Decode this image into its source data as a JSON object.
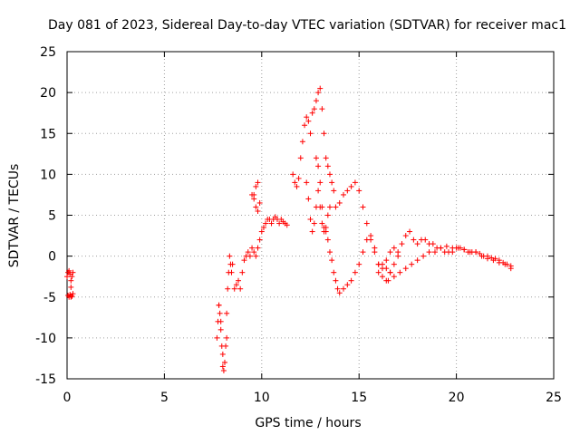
{
  "chart_data": {
    "type": "scatter",
    "title": "Day 081 of 2023, Sidereal Day-to-day VTEC variation (SDTVAR) for receiver mac1",
    "xlabel": "GPS time / hours",
    "ylabel": "SDTVAR / TECUs",
    "xlim": [
      0,
      25
    ],
    "ylim": [
      -15,
      25
    ],
    "xticks": [
      "0",
      "5",
      "10",
      "15",
      "20",
      "25"
    ],
    "yticks": [
      "-15",
      "-10",
      "-5",
      "0",
      "5",
      "10",
      "15",
      "20",
      "25"
    ],
    "grid": true,
    "series": [
      {
        "name": "SDTVAR",
        "color": "#ff0000",
        "marker": "plus",
        "x": [
          0.0,
          0.05,
          0.1,
          0.15,
          0.2,
          0.25,
          0.3,
          0.05,
          0.1,
          0.15,
          0.2,
          0.25,
          0.3,
          0.2,
          7.7,
          7.75,
          7.8,
          7.85,
          7.9,
          7.95,
          8.0,
          8.05,
          8.1,
          8.15,
          8.2,
          8.25,
          8.3,
          8.35,
          8.4,
          8.45,
          8.5,
          8.6,
          8.7,
          8.8,
          8.9,
          9.0,
          9.1,
          9.2,
          9.3,
          9.4,
          9.5,
          9.6,
          9.7,
          9.8,
          9.9,
          10.0,
          10.1,
          10.2,
          10.3,
          10.4,
          10.5,
          10.6,
          10.7,
          10.8,
          10.9,
          11.0,
          11.1,
          11.2,
          11.3,
          7.8,
          7.9,
          8.0,
          8.1,
          8.2,
          9.5,
          9.6,
          9.7,
          9.8,
          9.9,
          9.6,
          9.7,
          9.8,
          11.6,
          11.7,
          11.8,
          11.9,
          12.0,
          12.1,
          12.2,
          12.3,
          12.4,
          12.5,
          12.6,
          12.7,
          12.8,
          12.9,
          13.0,
          13.1,
          13.2,
          13.3,
          13.4,
          13.5,
          13.6,
          13.7,
          12.3,
          12.4,
          12.5,
          12.6,
          12.7,
          12.8,
          12.9,
          13.0,
          13.1,
          13.2,
          13.3,
          13.4,
          13.5,
          12.8,
          12.9,
          13.0,
          13.1,
          13.2,
          13.3,
          13.4,
          13.5,
          13.6,
          13.7,
          13.8,
          13.9,
          14.0,
          14.2,
          14.4,
          14.6,
          14.8,
          15.0,
          15.2,
          15.4,
          15.6,
          15.8,
          16.0,
          16.2,
          16.4,
          16.6,
          13.8,
          14.0,
          14.2,
          14.4,
          14.6,
          14.8,
          15.0,
          15.2,
          15.4,
          15.6,
          15.8,
          16.0,
          16.2,
          16.4,
          16.6,
          16.8,
          17.0,
          16.0,
          16.2,
          16.4,
          16.6,
          16.8,
          17.0,
          17.2,
          17.4,
          17.6,
          17.8,
          18.0,
          18.2,
          18.4,
          18.6,
          18.8,
          19.0,
          19.2,
          19.4,
          19.6,
          19.8,
          20.0,
          20.2,
          20.4,
          20.6,
          20.8,
          21.0,
          21.2,
          21.4,
          21.6,
          21.8,
          22.0,
          22.2,
          22.4,
          22.6,
          22.8,
          16.5,
          16.8,
          17.1,
          17.4,
          17.7,
          18.0,
          18.3,
          18.6,
          18.9,
          19.2,
          19.5,
          19.8,
          20.1,
          20.4,
          20.7,
          21.0,
          21.3,
          21.6,
          21.9,
          22.2,
          22.5,
          22.8
        ],
        "y": [
          -2.5,
          -2.0,
          -1.8,
          -2.2,
          -3.0,
          -2.5,
          -2.0,
          -4.8,
          -5.0,
          -4.7,
          -5.0,
          -4.9,
          -4.6,
          -3.8,
          -10.0,
          -8.0,
          -6.0,
          -7.0,
          -9.0,
          -11.0,
          -13.5,
          -14.0,
          -13.0,
          -11.0,
          -7.0,
          -4.0,
          -2.0,
          0.0,
          -1.0,
          -2.0,
          -1.0,
          -4.0,
          -3.5,
          -3.0,
          -4.0,
          -2.0,
          -0.5,
          0.0,
          0.5,
          0.0,
          1.0,
          0.5,
          0.0,
          1.0,
          2.0,
          3.0,
          3.5,
          4.0,
          4.5,
          4.5,
          4.0,
          4.5,
          4.8,
          4.5,
          4.0,
          4.5,
          4.2,
          4.0,
          3.8,
          -6.0,
          -8.0,
          -12.0,
          -13.0,
          -10.0,
          7.5,
          7.0,
          6.0,
          5.5,
          6.5,
          7.5,
          8.5,
          9.0,
          10.0,
          9.0,
          8.5,
          9.5,
          12.0,
          14.0,
          16.0,
          17.0,
          16.5,
          15.0,
          17.5,
          18.0,
          19.0,
          20.0,
          20.5,
          18.0,
          15.0,
          12.0,
          11.0,
          10.0,
          9.0,
          8.0,
          9.0,
          7.0,
          4.5,
          3.0,
          4.0,
          6.0,
          8.0,
          6.0,
          4.0,
          3.0,
          3.5,
          5.0,
          6.0,
          12.0,
          11.0,
          9.0,
          6.0,
          3.5,
          3.0,
          2.0,
          0.5,
          -0.5,
          -2.0,
          -3.0,
          -4.0,
          -4.5,
          -4.0,
          -3.5,
          -3.0,
          -2.0,
          -1.0,
          0.5,
          2.0,
          2.5,
          1.0,
          -1.0,
          -2.5,
          -3.0,
          -2.0,
          6.0,
          6.5,
          7.5,
          8.0,
          8.5,
          9.0,
          8.0,
          6.0,
          4.0,
          2.0,
          0.5,
          -1.0,
          -1.5,
          -0.5,
          0.5,
          1.0,
          0.0,
          -2.0,
          -1.0,
          -1.5,
          -2.0,
          -1.0,
          0.5,
          1.5,
          2.5,
          3.0,
          2.0,
          1.5,
          2.0,
          2.0,
          1.5,
          1.5,
          1.0,
          1.0,
          0.5,
          0.5,
          0.5,
          1.0,
          1.0,
          0.8,
          0.5,
          0.5,
          0.5,
          0.3,
          0.0,
          0.0,
          -0.2,
          -0.3,
          -0.5,
          -0.8,
          -1.0,
          -1.2,
          -3.0,
          -2.5,
          -2.0,
          -1.5,
          -1.0,
          -0.5,
          0.0,
          0.5,
          0.5,
          1.0,
          1.2,
          1.0,
          1.0,
          0.8,
          0.5,
          0.5,
          0.0,
          -0.3,
          -0.5,
          -0.8,
          -1.0,
          -1.5
        ]
      }
    ]
  }
}
